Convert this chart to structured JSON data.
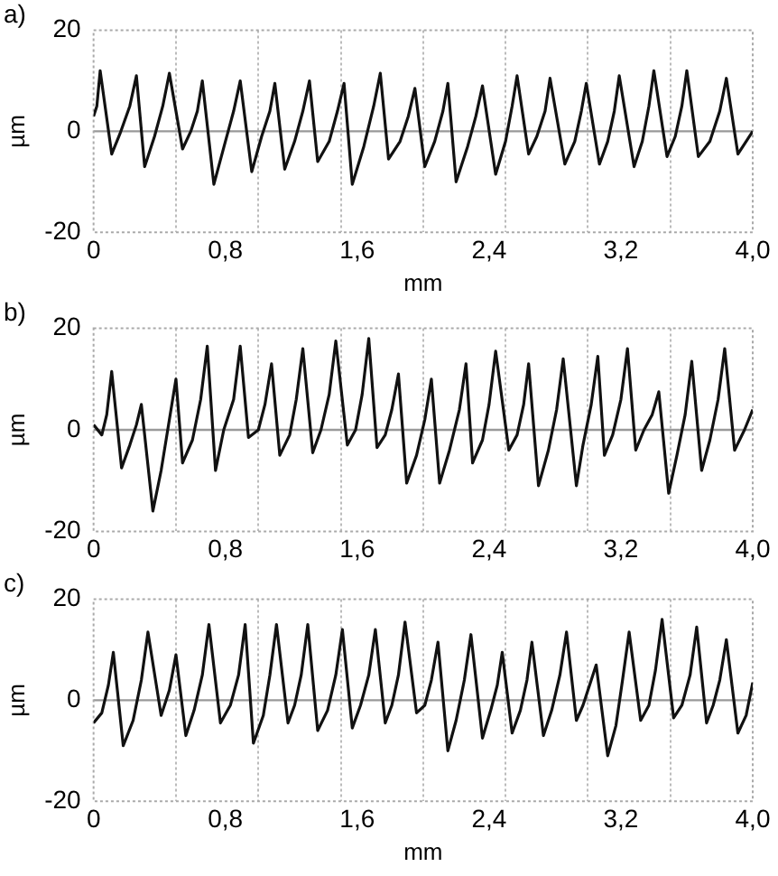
{
  "chart_data": [
    {
      "type": "line",
      "title": "a)",
      "xlabel": "mm",
      "ylabel": "µm",
      "grid": "x",
      "x": [
        0,
        0.02,
        0.04,
        0.11,
        0.16,
        0.22,
        0.26,
        0.31,
        0.37,
        0.42,
        0.46,
        0.54,
        0.59,
        0.63,
        0.66,
        0.73,
        0.8,
        0.85,
        0.89,
        0.96,
        1.02,
        1.07,
        1.1,
        1.16,
        1.22,
        1.27,
        1.31,
        1.36,
        1.43,
        1.48,
        1.52,
        1.57,
        1.64,
        1.7,
        1.74,
        1.79,
        1.86,
        1.91,
        1.95,
        2.01,
        2.07,
        2.12,
        2.15,
        2.2,
        2.27,
        2.32,
        2.36,
        2.44,
        2.5,
        2.54,
        2.57,
        2.64,
        2.69,
        2.74,
        2.77,
        2.86,
        2.92,
        2.96,
        2.99,
        3.07,
        3.12,
        3.16,
        3.19,
        3.28,
        3.33,
        3.37,
        3.4,
        3.48,
        3.53,
        3.57,
        3.6,
        3.67,
        3.74,
        3.8,
        3.84,
        3.91,
        3.96,
        4.0
      ],
      "series": [
        {
          "color": "#111111",
          "values": [
            3,
            5,
            12,
            -4.5,
            -0.5,
            5,
            11,
            -7,
            -1,
            5,
            11.5,
            -3.5,
            0,
            4,
            10,
            -10.5,
            -2,
            4,
            10,
            -8,
            -1,
            4,
            9.5,
            -7.5,
            -2,
            4,
            10,
            -6,
            -2,
            4,
            9.5,
            -10.5,
            -3,
            5,
            11.5,
            -5.5,
            -2,
            3,
            8.5,
            -7,
            -2,
            4,
            9.5,
            -10,
            -3,
            3,
            9,
            -8.5,
            -2,
            5,
            11,
            -4.5,
            -1,
            4,
            10.5,
            -6.5,
            -2,
            4,
            9.5,
            -6.5,
            -2,
            4,
            11,
            -7,
            -2,
            5,
            12,
            -5,
            -1,
            5,
            12,
            -5,
            -2,
            4,
            10.5,
            -4.5,
            -2,
            0
          ]
        }
      ],
      "xlim": [
        0,
        4
      ],
      "ylim": [
        -20,
        20
      ],
      "xticks": [
        {
          "value": 0,
          "label": "0"
        },
        {
          "value": 0.5,
          "label": null
        },
        {
          "value": 0.8,
          "label": "0,8"
        },
        {
          "value": 1,
          "label": null
        },
        {
          "value": 1.5,
          "label": null
        },
        {
          "value": 1.6,
          "label": "1,6"
        },
        {
          "value": 2,
          "label": null
        },
        {
          "value": 2.4,
          "label": "2,4"
        },
        {
          "value": 2.5,
          "label": null
        },
        {
          "value": 3,
          "label": null
        },
        {
          "value": 3.2,
          "label": "3,2"
        },
        {
          "value": 3.5,
          "label": null
        },
        {
          "value": 4,
          "label": "4,0"
        }
      ],
      "yticks": [
        -20,
        0,
        20
      ],
      "ref_lines": [
        {
          "axis": "y",
          "value": 0,
          "color": "#999999"
        }
      ]
    },
    {
      "type": "line",
      "title": "b)",
      "ylabel": "µm",
      "grid": "x",
      "x": [
        0,
        0.05,
        0.08,
        0.11,
        0.17,
        0.22,
        0.26,
        0.29,
        0.36,
        0.41,
        0.46,
        0.5,
        0.54,
        0.6,
        0.65,
        0.69,
        0.74,
        0.79,
        0.85,
        0.89,
        0.94,
        1.0,
        1.04,
        1.08,
        1.13,
        1.19,
        1.23,
        1.27,
        1.33,
        1.38,
        1.43,
        1.47,
        1.54,
        1.59,
        1.63,
        1.67,
        1.72,
        1.77,
        1.81,
        1.85,
        1.9,
        1.96,
        2.01,
        2.05,
        2.1,
        2.16,
        2.22,
        2.26,
        2.3,
        2.36,
        2.4,
        2.44,
        2.52,
        2.57,
        2.61,
        2.64,
        2.7,
        2.76,
        2.81,
        2.85,
        2.93,
        2.97,
        3.02,
        3.06,
        3.1,
        3.15,
        3.2,
        3.24,
        3.29,
        3.34,
        3.39,
        3.43,
        3.49,
        3.54,
        3.59,
        3.63,
        3.69,
        3.74,
        3.79,
        3.83,
        3.89,
        3.95,
        4.0
      ],
      "series": [
        {
          "color": "#111111",
          "values": [
            1,
            -1,
            3,
            11.5,
            -7.5,
            -3,
            1,
            5,
            -16,
            -8,
            2,
            10,
            -6.5,
            -2,
            6,
            16.5,
            -8,
            0,
            6,
            16.5,
            -1.5,
            0,
            5,
            13,
            -5,
            -1,
            6,
            16,
            -4.5,
            0,
            7,
            17.5,
            -3,
            0,
            7,
            18,
            -3.5,
            -1,
            4,
            11,
            -10.5,
            -5,
            2,
            10,
            -10.5,
            -4,
            4,
            13,
            -6.5,
            -2,
            5,
            15.5,
            -4,
            -1,
            5,
            13,
            -11,
            -4,
            4,
            14,
            -11,
            -3,
            5,
            14.5,
            -5,
            -1,
            6,
            16,
            -4,
            0,
            3,
            7.5,
            -12.5,
            -5,
            3,
            13.5,
            -8,
            -2,
            6,
            16,
            -4,
            0,
            4
          ]
        }
      ],
      "xlim": [
        0,
        4
      ],
      "ylim": [
        -20,
        20
      ],
      "xticks": [
        {
          "value": 0,
          "label": "0"
        },
        {
          "value": 0.5,
          "label": null
        },
        {
          "value": 0.8,
          "label": "0,8"
        },
        {
          "value": 1,
          "label": null
        },
        {
          "value": 1.5,
          "label": null
        },
        {
          "value": 1.6,
          "label": "1,6"
        },
        {
          "value": 2,
          "label": null
        },
        {
          "value": 2.4,
          "label": "2,4"
        },
        {
          "value": 2.5,
          "label": null
        },
        {
          "value": 3,
          "label": null
        },
        {
          "value": 3.2,
          "label": "3,2"
        },
        {
          "value": 3.5,
          "label": null
        },
        {
          "value": 4,
          "label": "4,0"
        }
      ],
      "yticks": [
        -20,
        0,
        20
      ],
      "ref_lines": [
        {
          "axis": "y",
          "value": 0,
          "color": "#999999"
        }
      ]
    },
    {
      "type": "line",
      "title": "c)",
      "xlabel": "mm",
      "ylabel": "µm",
      "grid": "x",
      "x": [
        0,
        0.05,
        0.09,
        0.12,
        0.18,
        0.24,
        0.29,
        0.33,
        0.41,
        0.46,
        0.5,
        0.56,
        0.61,
        0.66,
        0.7,
        0.77,
        0.83,
        0.88,
        0.92,
        0.97,
        1.03,
        1.07,
        1.11,
        1.18,
        1.22,
        1.26,
        1.3,
        1.36,
        1.42,
        1.47,
        1.51,
        1.57,
        1.62,
        1.67,
        1.71,
        1.77,
        1.81,
        1.85,
        1.89,
        1.96,
        2.01,
        2.05,
        2.09,
        2.15,
        2.2,
        2.25,
        2.29,
        2.36,
        2.41,
        2.45,
        2.48,
        2.54,
        2.59,
        2.63,
        2.66,
        2.73,
        2.78,
        2.83,
        2.87,
        2.93,
        2.97,
        3.01,
        3.05,
        3.12,
        3.17,
        3.21,
        3.25,
        3.32,
        3.37,
        3.41,
        3.45,
        3.52,
        3.57,
        3.62,
        3.66,
        3.72,
        3.76,
        3.8,
        3.84,
        3.91,
        3.96,
        4.0
      ],
      "series": [
        {
          "color": "#111111",
          "values": [
            -4.5,
            -2.5,
            3,
            9.5,
            -9,
            -4,
            4,
            13.5,
            -3,
            2,
            9,
            -7,
            -2,
            5,
            15,
            -4.5,
            -1,
            5,
            15,
            -8.5,
            -3,
            5,
            15,
            -4.5,
            -1,
            5,
            15,
            -6,
            -2,
            5,
            14,
            -5.5,
            -1,
            5,
            14,
            -4.5,
            -1,
            5,
            15.5,
            -2.5,
            -1,
            4,
            11.5,
            -10,
            -4,
            4,
            13,
            -7.5,
            -2,
            3,
            9.5,
            -6.5,
            -2,
            4,
            11.5,
            -7,
            -2,
            5,
            13.5,
            -4,
            -1,
            3,
            7,
            -11,
            -5,
            4,
            13.5,
            -4,
            -1,
            6,
            16,
            -3.5,
            -1,
            5,
            14.5,
            -4.5,
            -1,
            4,
            12,
            -6.5,
            -3,
            3.5
          ]
        }
      ],
      "xlim": [
        0,
        4
      ],
      "ylim": [
        -20,
        20
      ],
      "xticks": [
        {
          "value": 0,
          "label": "0"
        },
        {
          "value": 0.5,
          "label": null
        },
        {
          "value": 0.8,
          "label": "0,8"
        },
        {
          "value": 1,
          "label": null
        },
        {
          "value": 1.5,
          "label": null
        },
        {
          "value": 1.6,
          "label": "1,6"
        },
        {
          "value": 2,
          "label": null
        },
        {
          "value": 2.4,
          "label": "2,4"
        },
        {
          "value": 2.5,
          "label": null
        },
        {
          "value": 3,
          "label": null
        },
        {
          "value": 3.2,
          "label": "3,2"
        },
        {
          "value": 3.5,
          "label": null
        },
        {
          "value": 4,
          "label": "4,0"
        }
      ],
      "yticks": [
        -20,
        0,
        20
      ],
      "ref_lines": [
        {
          "axis": "y",
          "value": 0,
          "color": "#999999"
        }
      ]
    }
  ]
}
